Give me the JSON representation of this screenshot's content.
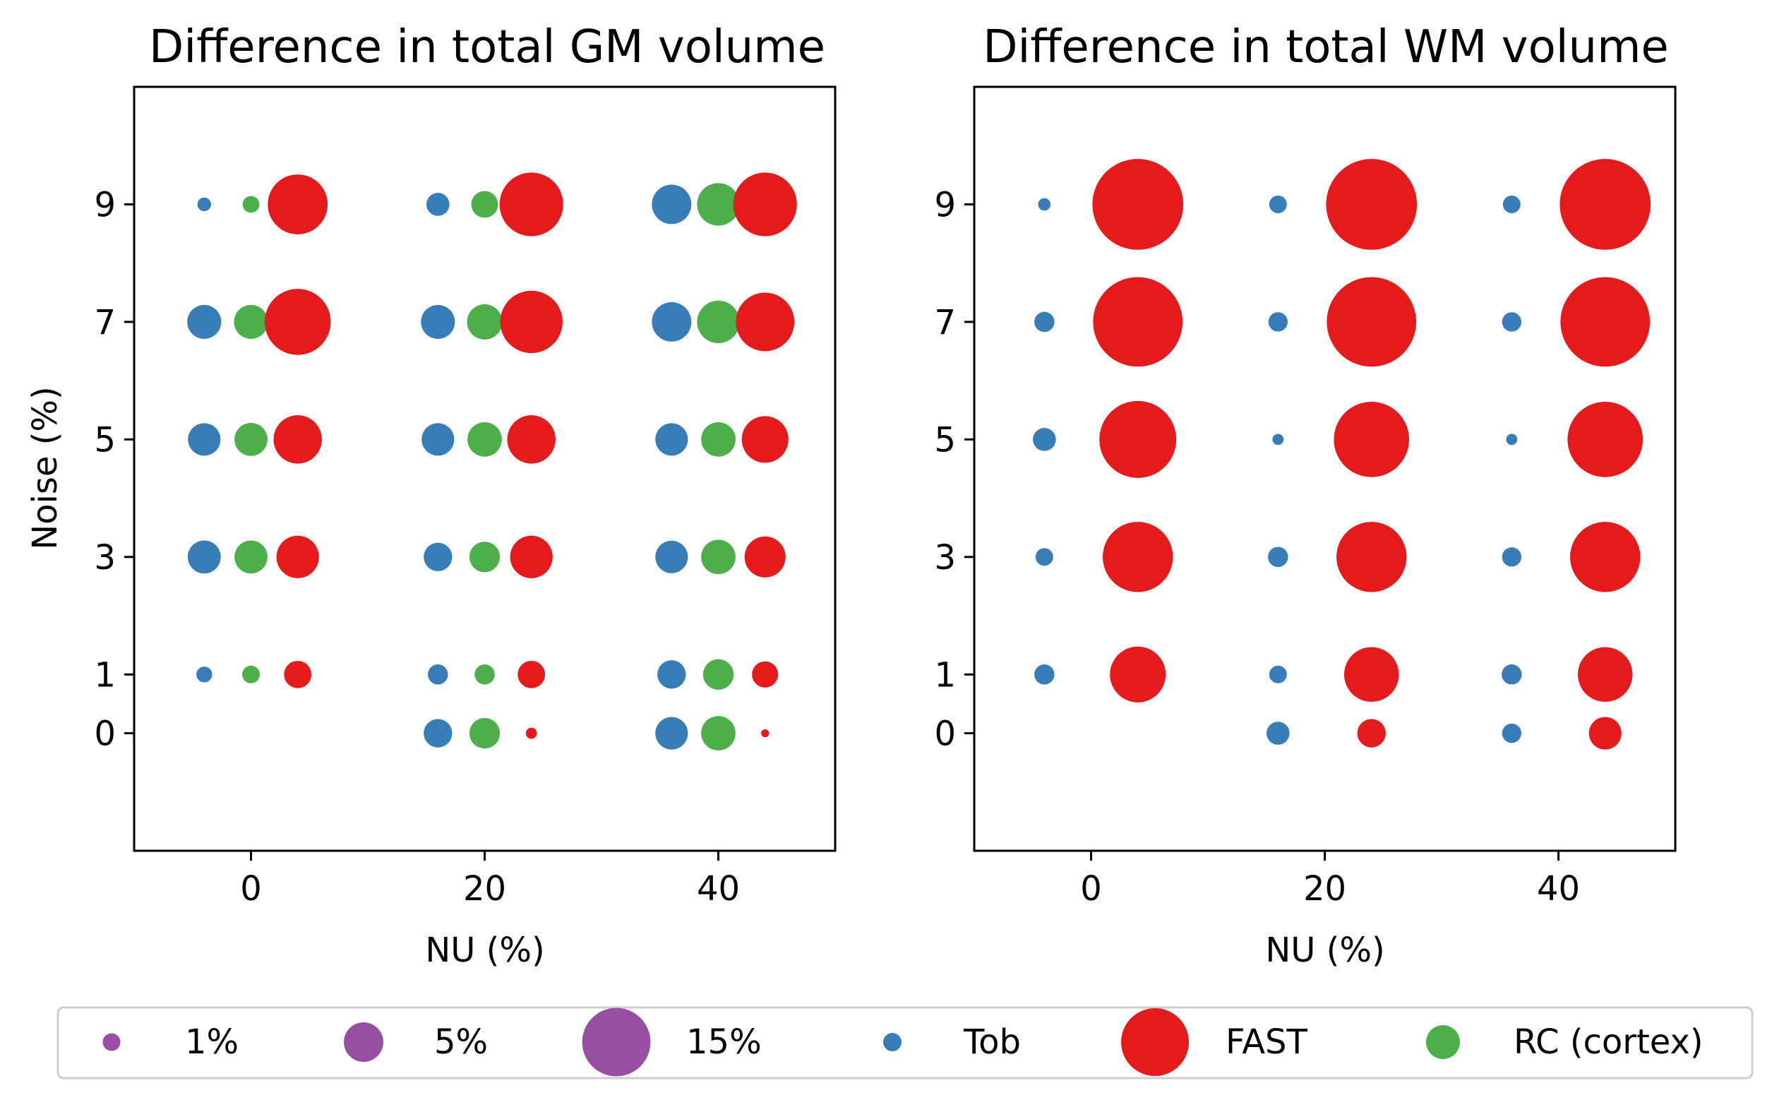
{
  "colors": {
    "Tob": "#377eb8",
    "FAST": "#e41a1c",
    "RC (cortex)": "#4daf4a",
    "size_legend": "#984ea3"
  },
  "legend": {
    "size_entries": [
      {
        "label": "1%",
        "value": 1
      },
      {
        "label": "5%",
        "value": 5
      },
      {
        "label": "15%",
        "value": 15
      }
    ],
    "method_entries": [
      {
        "label": "Tob",
        "key": "Tob"
      },
      {
        "label": "FAST",
        "key": "FAST"
      },
      {
        "label": "RC (cortex)",
        "key": "RC (cortex)"
      }
    ],
    "placement": "bottom, below both panels, single row"
  },
  "chart_data": [
    {
      "type": "scatter",
      "title": "Difference in total GM volume",
      "xlabel": "NU (%)",
      "ylabel": "Noise (%)",
      "xlim": [
        -10,
        50
      ],
      "ylim": [
        -2,
        11
      ],
      "xticks": [
        0,
        20,
        40
      ],
      "yticks": [
        0,
        1,
        3,
        5,
        7,
        9
      ],
      "grid": false,
      "series": [
        {
          "name": "Tob",
          "x_offset": -4,
          "points": [
            {
              "nu": 0,
              "noise": 1,
              "diff": 0.8
            },
            {
              "nu": 0,
              "noise": 3,
              "diff": 3.5
            },
            {
              "nu": 0,
              "noise": 5,
              "diff": 3.4
            },
            {
              "nu": 0,
              "noise": 7,
              "diff": 3.7
            },
            {
              "nu": 0,
              "noise": 9,
              "diff": 0.6
            },
            {
              "nu": 20,
              "noise": 0,
              "diff": 2.6
            },
            {
              "nu": 20,
              "noise": 1,
              "diff": 1.3
            },
            {
              "nu": 20,
              "noise": 3,
              "diff": 2.6
            },
            {
              "nu": 20,
              "noise": 5,
              "diff": 3.4
            },
            {
              "nu": 20,
              "noise": 7,
              "diff": 3.7
            },
            {
              "nu": 20,
              "noise": 9,
              "diff": 1.7
            },
            {
              "nu": 40,
              "noise": 0,
              "diff": 3.4
            },
            {
              "nu": 40,
              "noise": 1,
              "diff": 2.6
            },
            {
              "nu": 40,
              "noise": 3,
              "diff": 3.4
            },
            {
              "nu": 40,
              "noise": 5,
              "diff": 3.4
            },
            {
              "nu": 40,
              "noise": 7,
              "diff": 5.0
            },
            {
              "nu": 40,
              "noise": 9,
              "diff": 5.0
            }
          ]
        },
        {
          "name": "RC (cortex)",
          "x_offset": 0,
          "points": [
            {
              "nu": 0,
              "noise": 1,
              "diff": 1.0
            },
            {
              "nu": 0,
              "noise": 3,
              "diff": 3.5
            },
            {
              "nu": 0,
              "noise": 5,
              "diff": 3.5
            },
            {
              "nu": 0,
              "noise": 7,
              "diff": 3.7
            },
            {
              "nu": 0,
              "noise": 9,
              "diff": 0.9
            },
            {
              "nu": 20,
              "noise": 0,
              "diff": 3.0
            },
            {
              "nu": 20,
              "noise": 1,
              "diff": 1.3
            },
            {
              "nu": 20,
              "noise": 3,
              "diff": 3.0
            },
            {
              "nu": 20,
              "noise": 5,
              "diff": 3.8
            },
            {
              "nu": 20,
              "noise": 7,
              "diff": 4.0
            },
            {
              "nu": 20,
              "noise": 9,
              "diff": 2.3
            },
            {
              "nu": 40,
              "noise": 0,
              "diff": 3.8
            },
            {
              "nu": 40,
              "noise": 1,
              "diff": 3.0
            },
            {
              "nu": 40,
              "noise": 3,
              "diff": 3.8
            },
            {
              "nu": 40,
              "noise": 5,
              "diff": 3.8
            },
            {
              "nu": 40,
              "noise": 7,
              "diff": 5.8
            },
            {
              "nu": 40,
              "noise": 9,
              "diff": 5.8
            }
          ]
        },
        {
          "name": "FAST",
          "x_offset": 4,
          "points": [
            {
              "nu": 0,
              "noise": 1,
              "diff": 2.4
            },
            {
              "nu": 0,
              "noise": 3,
              "diff": 5.8
            },
            {
              "nu": 0,
              "noise": 5,
              "diff": 7.5
            },
            {
              "nu": 0,
              "noise": 7,
              "diff": 14.0
            },
            {
              "nu": 0,
              "noise": 9,
              "diff": 11.5
            },
            {
              "nu": 20,
              "noise": 0,
              "diff": 0.4
            },
            {
              "nu": 20,
              "noise": 1,
              "diff": 2.4
            },
            {
              "nu": 20,
              "noise": 3,
              "diff": 5.8
            },
            {
              "nu": 20,
              "noise": 5,
              "diff": 7.5
            },
            {
              "nu": 20,
              "noise": 7,
              "diff": 12.5
            },
            {
              "nu": 20,
              "noise": 9,
              "diff": 13.0
            },
            {
              "nu": 40,
              "noise": 0,
              "diff": 0.2
            },
            {
              "nu": 40,
              "noise": 1,
              "diff": 2.2
            },
            {
              "nu": 40,
              "noise": 3,
              "diff": 5.4
            },
            {
              "nu": 40,
              "noise": 5,
              "diff": 7.0
            },
            {
              "nu": 40,
              "noise": 7,
              "diff": 11.0
            },
            {
              "nu": 40,
              "noise": 9,
              "diff": 13.0
            }
          ]
        }
      ]
    },
    {
      "type": "scatter",
      "title": "Difference in total WM volume",
      "xlabel": "NU (%)",
      "ylabel": "",
      "xlim": [
        -10,
        50
      ],
      "ylim": [
        -2,
        11
      ],
      "xticks": [
        0,
        20,
        40
      ],
      "yticks": [
        0,
        1,
        3,
        5,
        7,
        9
      ],
      "grid": false,
      "series": [
        {
          "name": "Tob",
          "x_offset": -4,
          "points": [
            {
              "nu": 0,
              "noise": 1,
              "diff": 1.3
            },
            {
              "nu": 0,
              "noise": 3,
              "diff": 1.0
            },
            {
              "nu": 0,
              "noise": 5,
              "diff": 1.7
            },
            {
              "nu": 0,
              "noise": 7,
              "diff": 1.3
            },
            {
              "nu": 0,
              "noise": 9,
              "diff": 0.5
            },
            {
              "nu": 20,
              "noise": 0,
              "diff": 1.7
            },
            {
              "nu": 20,
              "noise": 1,
              "diff": 1.0
            },
            {
              "nu": 20,
              "noise": 3,
              "diff": 1.3
            },
            {
              "nu": 20,
              "noise": 5,
              "diff": 0.4
            },
            {
              "nu": 20,
              "noise": 7,
              "diff": 1.2
            },
            {
              "nu": 20,
              "noise": 9,
              "diff": 1.0
            },
            {
              "nu": 40,
              "noise": 0,
              "diff": 1.2
            },
            {
              "nu": 40,
              "noise": 1,
              "diff": 1.3
            },
            {
              "nu": 40,
              "noise": 3,
              "diff": 1.2
            },
            {
              "nu": 40,
              "noise": 5,
              "diff": 0.4
            },
            {
              "nu": 40,
              "noise": 7,
              "diff": 1.2
            },
            {
              "nu": 40,
              "noise": 9,
              "diff": 1.0
            }
          ]
        },
        {
          "name": "FAST",
          "x_offset": 4,
          "points": [
            {
              "nu": 0,
              "noise": 1,
              "diff": 10.0
            },
            {
              "nu": 0,
              "noise": 3,
              "diff": 15.8
            },
            {
              "nu": 0,
              "noise": 5,
              "diff": 19.0
            },
            {
              "nu": 0,
              "noise": 7,
              "diff": 25.7
            },
            {
              "nu": 0,
              "noise": 9,
              "diff": 26.5
            },
            {
              "nu": 20,
              "noise": 0,
              "diff": 2.6
            },
            {
              "nu": 20,
              "noise": 1,
              "diff": 9.6
            },
            {
              "nu": 20,
              "noise": 3,
              "diff": 15.8
            },
            {
              "nu": 20,
              "noise": 5,
              "diff": 18.2
            },
            {
              "nu": 20,
              "noise": 7,
              "diff": 25.7
            },
            {
              "nu": 20,
              "noise": 9,
              "diff": 26.5
            },
            {
              "nu": 40,
              "noise": 0,
              "diff": 3.4
            },
            {
              "nu": 40,
              "noise": 1,
              "diff": 9.6
            },
            {
              "nu": 40,
              "noise": 3,
              "diff": 15.8
            },
            {
              "nu": 40,
              "noise": 5,
              "diff": 18.2
            },
            {
              "nu": 40,
              "noise": 7,
              "diff": 25.7
            },
            {
              "nu": 40,
              "noise": 9,
              "diff": 26.5
            }
          ]
        }
      ]
    }
  ]
}
